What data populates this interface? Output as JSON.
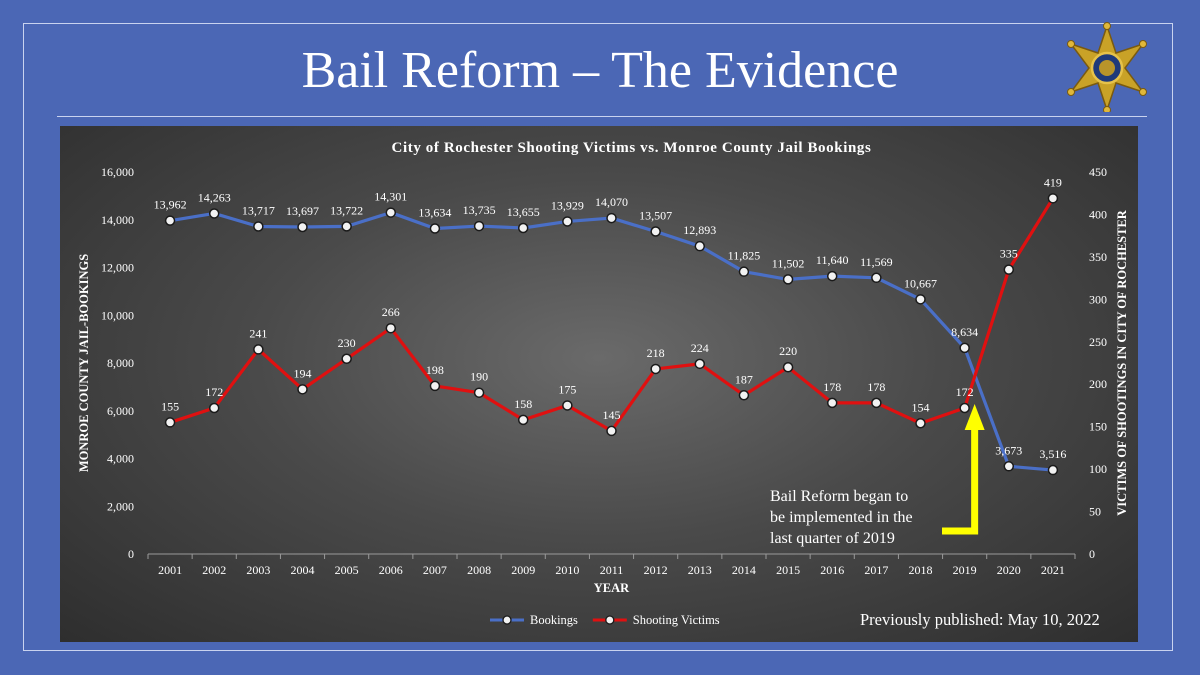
{
  "slide": {
    "title": "Bail Reform – The Evidence",
    "published_note": "Previously published: May 10, 2022",
    "badge_icon": "sheriff-star-badge-icon"
  },
  "chart_data": {
    "type": "line",
    "title": "City of Rochester Shooting Victims vs. Monroe County Jail Bookings",
    "xlabel": "YEAR",
    "ylabel": "MONROE COUNTY JAIL-BOOKINGS",
    "y2label": "VICTIMS OF SHOOTINGS IN CITY OF ROCHESTER",
    "categories": [
      "2001",
      "2002",
      "2003",
      "2004",
      "2005",
      "2006",
      "2007",
      "2008",
      "2009",
      "2010",
      "2011",
      "2012",
      "2013",
      "2014",
      "2015",
      "2016",
      "2017",
      "2018",
      "2019",
      "2020",
      "2021"
    ],
    "ylim": [
      0,
      16000
    ],
    "y2lim": [
      0,
      450
    ],
    "yticks": [
      "0",
      "2,000",
      "4,000",
      "6,000",
      "8,000",
      "10,000",
      "12,000",
      "14,000",
      "16,000"
    ],
    "y2ticks": [
      "0",
      "50",
      "100",
      "150",
      "200",
      "250",
      "300",
      "350",
      "400",
      "450"
    ],
    "grid": false,
    "legend_position": "bottom-center",
    "series": [
      {
        "name": "Bookings",
        "axis": "left",
        "color": "#4a6fc7",
        "values": [
          13962,
          14263,
          13717,
          13697,
          13722,
          14301,
          13634,
          13735,
          13655,
          13929,
          14070,
          13507,
          12893,
          11825,
          11502,
          11640,
          11569,
          10667,
          8634,
          3673,
          3516
        ],
        "labels": [
          "13,962",
          "14,263",
          "13,717",
          "13,697",
          "13,722",
          "14,301",
          "13,634",
          "13,735",
          "13,655",
          "13,929",
          "14,070",
          "13,507",
          "12,893",
          "11,825",
          "11,502",
          "11,640",
          "11,569",
          "10,667",
          "8,634",
          "3,673",
          "3,516"
        ]
      },
      {
        "name": "Shooting Victims",
        "axis": "right",
        "color": "#e01010",
        "values": [
          155,
          172,
          241,
          194,
          230,
          266,
          198,
          190,
          158,
          175,
          145,
          218,
          224,
          187,
          220,
          178,
          178,
          154,
          172,
          335,
          419
        ],
        "labels": [
          "155",
          "172",
          "241",
          "194",
          "230",
          "266",
          "198",
          "190",
          "158",
          "175",
          "145",
          "218",
          "224",
          "187",
          "220",
          "178",
          "178",
          "154",
          "172",
          "335",
          "419"
        ]
      }
    ],
    "annotation": {
      "lines": [
        "Bail Reform  began to",
        "be implemented in the",
        "last quarter of 2019"
      ],
      "arrow_color": "#ffff00",
      "points_to": "2019"
    }
  }
}
